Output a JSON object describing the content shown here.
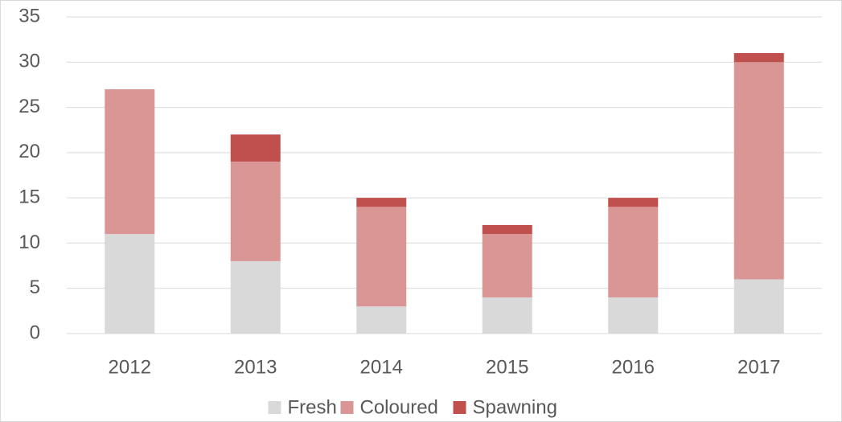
{
  "chart_data": {
    "type": "stacked_bar",
    "categories": [
      "2012",
      "2013",
      "2014",
      "2015",
      "2016",
      "2017"
    ],
    "series": [
      {
        "name": "Fresh",
        "color": "#d9d9d9",
        "values": [
          11,
          8,
          3,
          4,
          4,
          6
        ]
      },
      {
        "name": "Coloured",
        "color": "#d99694",
        "values": [
          16,
          11,
          11,
          7,
          10,
          24
        ]
      },
      {
        "name": "Spawning",
        "color": "#c0504d",
        "values": [
          0,
          3,
          1,
          1,
          1,
          1
        ]
      }
    ],
    "ylim": [
      0,
      35
    ],
    "yticks": [
      0,
      5,
      10,
      15,
      20,
      25,
      30,
      35
    ],
    "grid": true,
    "legend": "bottom"
  }
}
